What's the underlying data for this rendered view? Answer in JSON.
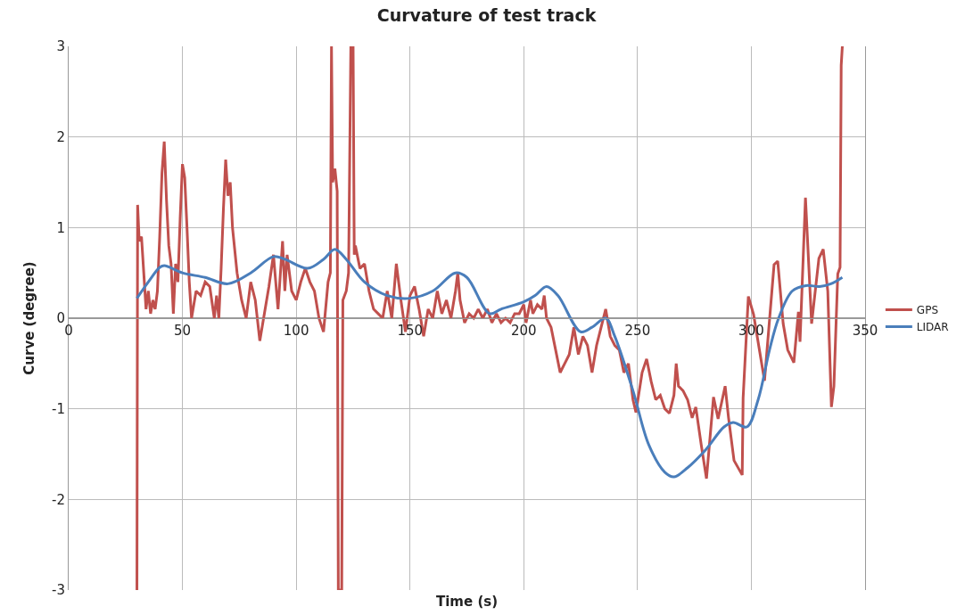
{
  "chart_data": {
    "type": "line",
    "title": "Curvature of test track",
    "xlabel": "Time (s)",
    "ylabel": "Curve (degree)",
    "xlim": [
      0,
      350
    ],
    "ylim": [
      -3,
      3
    ],
    "xticks": [
      0,
      50,
      100,
      150,
      200,
      250,
      300,
      350
    ],
    "yticks": [
      -3,
      -2,
      -1,
      0,
      1,
      2,
      3
    ],
    "grid": true,
    "legend": "right",
    "marker": "none",
    "line_style": "solid",
    "series": [
      {
        "name": "GPS",
        "color": "#c0504d",
        "x": [
          30,
          30.3,
          31,
          32,
          33,
          34,
          35,
          36,
          37,
          38,
          39,
          40,
          41,
          42,
          43,
          44,
          45,
          46,
          47,
          48,
          49,
          50,
          51,
          52,
          53,
          54,
          56,
          58,
          60,
          62,
          64,
          65,
          66,
          67,
          68,
          69,
          70,
          71,
          72,
          74,
          76,
          78,
          80,
          82,
          84,
          86,
          88,
          90,
          91,
          92,
          94,
          95,
          96,
          98,
          100,
          102,
          104,
          106,
          108,
          110,
          112,
          114,
          115,
          115.5,
          116,
          117,
          118,
          118.5,
          120,
          120.5,
          122,
          123,
          124,
          125,
          125.5,
          126,
          128,
          130,
          132,
          134,
          136,
          138,
          140,
          142,
          144,
          146,
          148,
          150,
          152,
          154,
          156,
          158,
          160,
          162,
          164,
          166,
          168,
          170,
          171,
          172,
          174,
          176,
          178,
          180,
          182,
          184,
          186,
          188,
          190,
          192,
          194,
          196,
          198,
          200,
          201,
          203,
          204,
          206,
          208,
          209,
          210,
          212,
          214,
          216,
          218,
          220,
          222,
          224,
          226,
          228,
          230,
          232,
          234,
          236,
          238,
          240,
          242,
          244,
          246,
          248,
          249.3,
          252,
          254,
          256,
          258,
          260,
          262,
          264,
          266,
          267,
          268,
          270,
          272,
          274,
          275.6,
          278,
          280.3,
          283.4,
          285.4,
          288.5,
          290,
          292.4,
          296,
          296.4,
          298.7,
          301,
          305.8,
          310,
          311.6,
          314,
          316,
          318.7,
          320.7,
          321.4,
          323.8,
          326.5,
          329.7,
          331.6,
          333.6,
          335.2,
          336.3,
          338,
          339,
          339.5,
          340
        ],
        "values": [
          -3,
          1.25,
          0.85,
          0.9,
          0.5,
          0.1,
          0.3,
          0.05,
          0.2,
          0.1,
          0.3,
          0.9,
          1.6,
          1.95,
          1.3,
          0.8,
          0.6,
          0.05,
          0.6,
          0.4,
          1.1,
          1.7,
          1.55,
          1.0,
          0.4,
          0.0,
          0.3,
          0.25,
          0.4,
          0.35,
          0.0,
          0.25,
          0.0,
          0.55,
          1.2,
          1.75,
          1.35,
          1.5,
          1.0,
          0.5,
          0.2,
          0.0,
          0.4,
          0.2,
          -0.25,
          0.05,
          0.35,
          0.7,
          0.4,
          0.1,
          0.85,
          0.3,
          0.7,
          0.3,
          0.2,
          0.4,
          0.55,
          0.4,
          0.3,
          0.0,
          -0.15,
          0.4,
          0.5,
          3,
          1.5,
          1.65,
          1.4,
          -3,
          -3,
          0.2,
          0.3,
          0.5,
          3,
          3,
          0.7,
          0.8,
          0.55,
          0.6,
          0.3,
          0.1,
          0.05,
          0.0,
          0.3,
          0.0,
          0.6,
          0.2,
          -0.15,
          0.25,
          0.35,
          0.1,
          -0.2,
          0.1,
          0.0,
          0.3,
          0.05,
          0.2,
          0.0,
          0.3,
          0.5,
          0.2,
          -0.05,
          0.05,
          0.0,
          0.1,
          0.0,
          0.1,
          -0.05,
          0.05,
          -0.05,
          0.0,
          -0.05,
          0.05,
          0.05,
          0.15,
          -0.05,
          0.2,
          0.05,
          0.15,
          0.1,
          0.25,
          0.0,
          -0.1,
          -0.35,
          -0.6,
          -0.5,
          -0.4,
          -0.1,
          -0.4,
          -0.2,
          -0.3,
          -0.6,
          -0.3,
          -0.1,
          0.1,
          -0.2,
          -0.3,
          -0.35,
          -0.6,
          -0.5,
          -0.9,
          -1.04,
          -0.6,
          -0.45,
          -0.7,
          -0.9,
          -0.85,
          -1.0,
          -1.05,
          -0.85,
          -0.5,
          -0.75,
          -0.8,
          -0.9,
          -1.1,
          -0.98,
          -1.4,
          -1.77,
          -0.87,
          -1.11,
          -0.75,
          -1.1,
          -1.57,
          -1.73,
          -0.88,
          0.24,
          0.04,
          -0.69,
          0.59,
          0.63,
          -0.06,
          -0.35,
          -0.49,
          0.07,
          -0.26,
          1.33,
          -0.06,
          0.66,
          0.76,
          0.3,
          -0.98,
          -0.75,
          0.49,
          0.56,
          2.79,
          3
        ]
      },
      {
        "name": "LIDAR",
        "color": "#4a7ebb",
        "x": [
          30,
          35,
          40,
          42,
          50,
          60,
          70,
          80,
          90,
          95,
          105,
          112,
          117,
          122,
          130,
          140,
          150,
          160,
          170,
          175,
          185,
          190,
          200,
          205,
          210,
          215,
          225,
          230,
          236,
          240,
          248,
          255,
          262,
          266,
          272,
          280,
          288,
          292,
          298,
          303,
          308,
          312,
          318,
          324,
          330,
          335,
          340
        ],
        "values": [
          0.22,
          0.4,
          0.56,
          0.58,
          0.5,
          0.45,
          0.38,
          0.5,
          0.68,
          0.65,
          0.55,
          0.65,
          0.76,
          0.65,
          0.4,
          0.25,
          0.22,
          0.3,
          0.5,
          0.45,
          0.05,
          0.1,
          0.18,
          0.25,
          0.35,
          0.25,
          -0.15,
          -0.1,
          0.0,
          -0.2,
          -0.8,
          -1.4,
          -1.7,
          -1.75,
          -1.65,
          -1.45,
          -1.2,
          -1.15,
          -1.2,
          -0.9,
          -0.35,
          0.0,
          0.3,
          0.36,
          0.35,
          0.38,
          0.45
        ]
      }
    ]
  }
}
